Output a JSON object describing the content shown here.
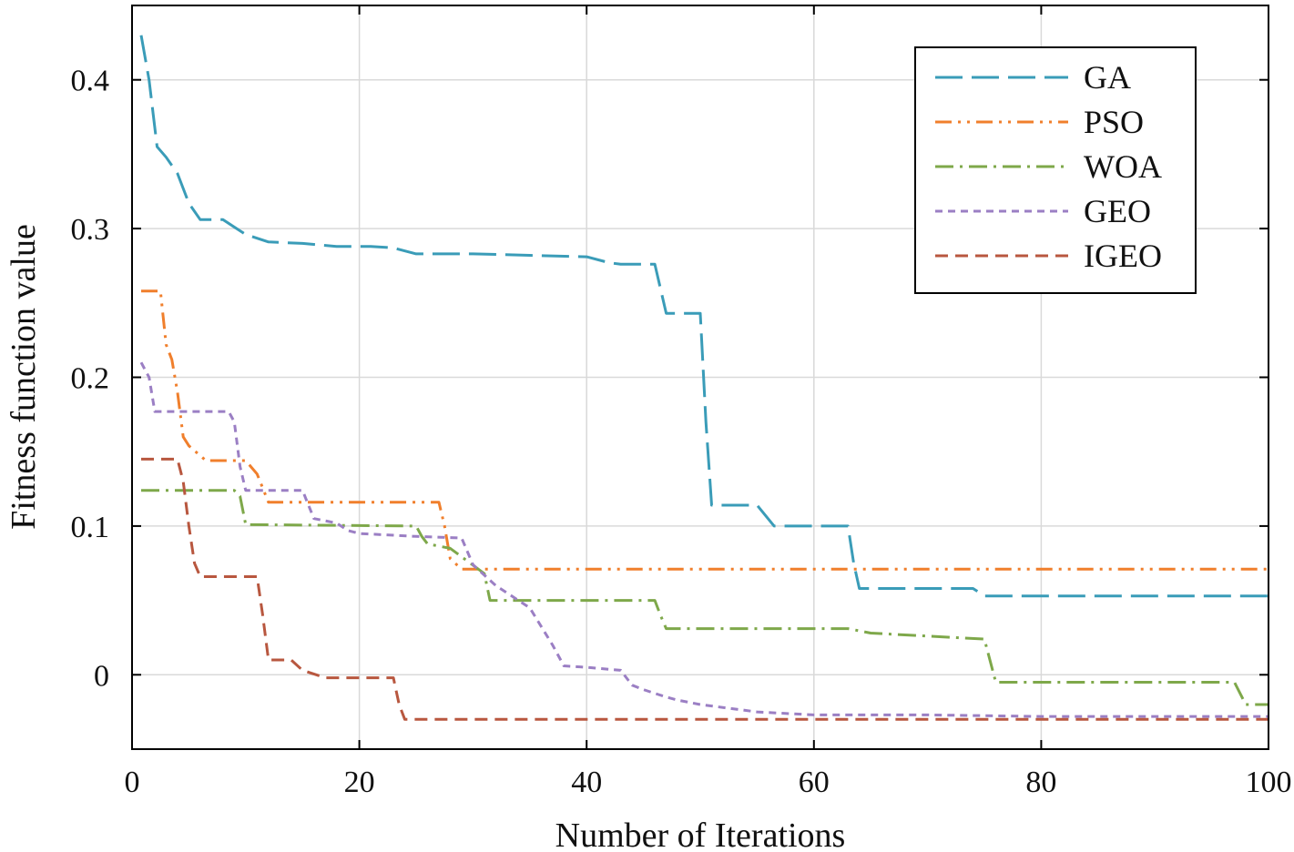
{
  "chart_data": {
    "type": "line",
    "xlabel": "Number of Iterations",
    "ylabel": "Fitness function value",
    "xlim": [
      0,
      100
    ],
    "ylim": [
      -0.05,
      0.45
    ],
    "grid": true,
    "legend_position": "top-right",
    "x_ticks": [
      {
        "value": 0,
        "label": "0"
      },
      {
        "value": 20,
        "label": "20"
      },
      {
        "value": 40,
        "label": "40"
      },
      {
        "value": 60,
        "label": "60"
      },
      {
        "value": 80,
        "label": "80"
      },
      {
        "value": 100,
        "label": "100"
      }
    ],
    "y_ticks": [
      {
        "value": 0,
        "label": "0"
      },
      {
        "value": 0.1,
        "label": "0.1"
      },
      {
        "value": 0.2,
        "label": "0.2"
      },
      {
        "value": 0.3,
        "label": "0.3"
      },
      {
        "value": 0.4,
        "label": "0.4"
      }
    ],
    "series": [
      {
        "name": "GA",
        "color": "#3a9cb8",
        "dash": "long-dash",
        "x": [
          0.8,
          1.5,
          2.2,
          3,
          4,
          5,
          6,
          8,
          10,
          12,
          15,
          18,
          21,
          23,
          25,
          27,
          30,
          35,
          40,
          42,
          43,
          46,
          47,
          49,
          50,
          50.5,
          51,
          55,
          56.5,
          57,
          63,
          63.5,
          64,
          74,
          75,
          100
        ],
        "y": [
          0.43,
          0.4,
          0.355,
          0.348,
          0.337,
          0.317,
          0.306,
          0.306,
          0.296,
          0.291,
          0.29,
          0.288,
          0.288,
          0.287,
          0.283,
          0.283,
          0.283,
          0.282,
          0.281,
          0.277,
          0.276,
          0.276,
          0.243,
          0.243,
          0.243,
          0.17,
          0.114,
          0.114,
          0.1,
          0.1,
          0.1,
          0.075,
          0.058,
          0.058,
          0.053,
          0.053
        ]
      },
      {
        "name": "PSO",
        "color": "#f07f2c",
        "dash": "dash-dot-dot",
        "x": [
          0.8,
          2.5,
          3,
          3.5,
          4,
          4.5,
          5,
          6.5,
          10,
          11,
          12,
          27,
          27.5,
          28,
          29,
          100
        ],
        "y": [
          0.258,
          0.258,
          0.222,
          0.212,
          0.19,
          0.16,
          0.154,
          0.144,
          0.144,
          0.135,
          0.116,
          0.116,
          0.1,
          0.078,
          0.071,
          0.071
        ]
      },
      {
        "name": "WOA",
        "color": "#7ea84a",
        "dash": "dash-dot",
        "x": [
          0.8,
          9,
          9.5,
          10,
          25,
          25.5,
          26,
          28,
          31,
          31.5,
          32,
          46,
          46.5,
          47,
          63,
          65,
          70,
          75,
          76,
          97,
          98,
          100
        ],
        "y": [
          0.124,
          0.124,
          0.12,
          0.101,
          0.1,
          0.093,
          0.088,
          0.085,
          0.068,
          0.05,
          0.05,
          0.05,
          0.04,
          0.031,
          0.031,
          0.028,
          0.026,
          0.024,
          -0.005,
          -0.005,
          -0.02,
          -0.02
        ]
      },
      {
        "name": "GEO",
        "color": "#9b7fc4",
        "dash": "short-dash",
        "x": [
          0.8,
          1.5,
          2,
          8.5,
          9,
          9.5,
          10,
          15,
          16,
          18,
          19,
          20,
          25,
          29,
          30,
          32,
          33,
          35,
          37,
          38,
          40,
          43,
          44,
          45,
          47,
          48,
          50,
          55,
          60,
          70,
          80,
          90,
          100
        ],
        "y": [
          0.21,
          0.2,
          0.177,
          0.177,
          0.17,
          0.14,
          0.124,
          0.124,
          0.105,
          0.102,
          0.097,
          0.095,
          0.093,
          0.092,
          0.074,
          0.06,
          0.055,
          0.045,
          0.02,
          0.006,
          0.005,
          0.003,
          -0.007,
          -0.01,
          -0.015,
          -0.017,
          -0.02,
          -0.025,
          -0.027,
          -0.027,
          -0.028,
          -0.028,
          -0.028
        ]
      },
      {
        "name": "IGEO",
        "color": "#b8573f",
        "dash": "dash",
        "x": [
          0.8,
          4,
          4.5,
          5,
          5.5,
          6,
          10,
          11,
          11.5,
          12,
          14,
          15,
          17,
          23,
          23.5,
          24,
          100
        ],
        "y": [
          0.145,
          0.145,
          0.13,
          0.1,
          0.075,
          0.066,
          0.066,
          0.066,
          0.04,
          0.01,
          0.01,
          0.003,
          -0.002,
          -0.002,
          -0.02,
          -0.03,
          -0.03
        ]
      }
    ]
  }
}
